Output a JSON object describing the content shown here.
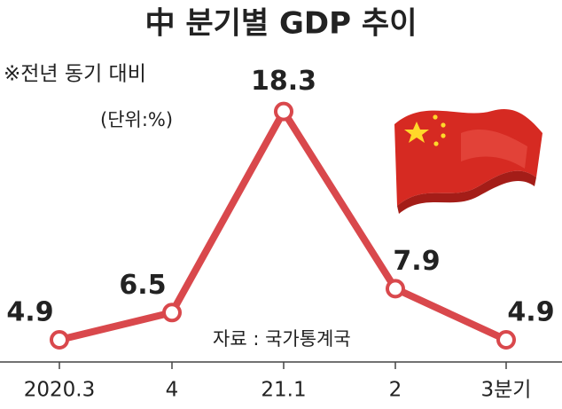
{
  "chart_data": {
    "type": "line",
    "title": "中 분기별 GDP 추이",
    "subtitle": "※전년 동기 대비",
    "unit_note": "(단위:%)",
    "source": "자료 : 국가통계국",
    "categories": [
      "2020.3",
      "4",
      "21.1",
      "2",
      "3분기"
    ],
    "values": [
      4.9,
      6.5,
      18.3,
      7.9,
      4.9
    ],
    "color": "#d9484c",
    "ylim": [
      3.6,
      20
    ]
  }
}
